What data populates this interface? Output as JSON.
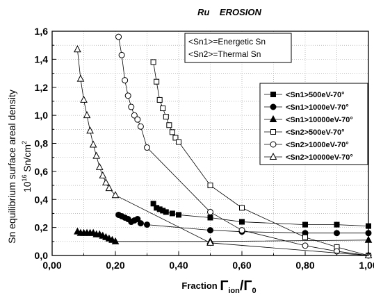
{
  "chart_data": {
    "type": "scatter",
    "title": "Ru    EROSION",
    "ylabel_line1": "Sn equilibrium surface areal density",
    "ylabel_line2_prefix": "10",
    "ylabel_line2_exp": "16",
    "ylabel_line2_mid": " Sn/cm",
    "ylabel_line2_exp2": "2",
    "xlabel_prefix": "Fraction ",
    "xlabel_gamma1": "Γ",
    "xlabel_sub1": "ion",
    "xlabel_slash": "/",
    "xlabel_gamma2": "Γ",
    "xlabel_sub2": "0",
    "xlim": [
      0.0,
      1.0
    ],
    "ylim": [
      0.0,
      1.6
    ],
    "x_ticks": [
      "0,00",
      "0,20",
      "0,40",
      "0,60",
      "0,80",
      "1,00"
    ],
    "y_ticks": [
      "0,0",
      "0,2",
      "0,4",
      "0,6",
      "0,8",
      "1,0",
      "1,2",
      "1,4",
      "1,6"
    ],
    "grid": true,
    "note_lines": [
      "<Sn1>=Energetic Sn",
      "<Sn2>=Thermal Sn"
    ],
    "legend_position": "right",
    "series": [
      {
        "name": "<Sn1>500eV-70°",
        "marker": "square",
        "filled": true,
        "x": [
          0.32,
          0.33,
          0.34,
          0.35,
          0.36,
          0.38,
          0.4,
          0.5,
          0.6,
          0.8,
          0.9,
          1.0
        ],
        "y": [
          0.37,
          0.34,
          0.33,
          0.32,
          0.31,
          0.3,
          0.29,
          0.27,
          0.24,
          0.22,
          0.22,
          0.21
        ]
      },
      {
        "name": "<Sn1>1000eV-70°",
        "marker": "circle",
        "filled": true,
        "x": [
          0.21,
          0.22,
          0.23,
          0.24,
          0.25,
          0.26,
          0.27,
          0.28,
          0.3,
          0.5,
          0.6,
          0.8,
          0.9,
          1.0
        ],
        "y": [
          0.29,
          0.28,
          0.27,
          0.26,
          0.24,
          0.25,
          0.26,
          0.23,
          0.22,
          0.18,
          0.17,
          0.16,
          0.16,
          0.16
        ]
      },
      {
        "name": "<Sn1>10000eV-70°",
        "marker": "triangle",
        "filled": true,
        "x": [
          0.08,
          0.09,
          0.1,
          0.11,
          0.12,
          0.13,
          0.14,
          0.15,
          0.16,
          0.17,
          0.18,
          0.19,
          0.2,
          0.5,
          1.0
        ],
        "y": [
          0.17,
          0.16,
          0.16,
          0.16,
          0.16,
          0.16,
          0.15,
          0.15,
          0.14,
          0.13,
          0.12,
          0.11,
          0.1,
          0.1,
          0.11
        ]
      },
      {
        "name": "<Sn2>500eV-70°",
        "marker": "square",
        "filled": false,
        "x": [
          0.32,
          0.33,
          0.34,
          0.35,
          0.36,
          0.37,
          0.38,
          0.39,
          0.4,
          0.5,
          0.6,
          0.8,
          0.9,
          1.0
        ],
        "y": [
          1.38,
          1.24,
          1.11,
          1.05,
          0.99,
          0.93,
          0.88,
          0.84,
          0.81,
          0.5,
          0.34,
          0.13,
          0.06,
          0.0
        ]
      },
      {
        "name": "<Sn2>1000eV-70°",
        "marker": "circle",
        "filled": false,
        "x": [
          0.21,
          0.22,
          0.23,
          0.24,
          0.25,
          0.26,
          0.27,
          0.28,
          0.3,
          0.5,
          0.6,
          0.8,
          0.9,
          1.0
        ],
        "y": [
          1.56,
          1.43,
          1.25,
          1.14,
          1.06,
          1.0,
          0.97,
          0.92,
          0.77,
          0.31,
          0.18,
          0.07,
          0.03,
          0.0
        ]
      },
      {
        "name": "<Sn2>10000eV-70°",
        "marker": "triangle",
        "filled": false,
        "x": [
          0.08,
          0.09,
          0.1,
          0.11,
          0.12,
          0.13,
          0.14,
          0.15,
          0.16,
          0.17,
          0.18,
          0.2,
          0.5,
          1.0
        ],
        "y": [
          1.47,
          1.26,
          1.11,
          1.0,
          0.89,
          0.79,
          0.71,
          0.63,
          0.57,
          0.52,
          0.48,
          0.43,
          0.09,
          0.0
        ]
      }
    ]
  }
}
